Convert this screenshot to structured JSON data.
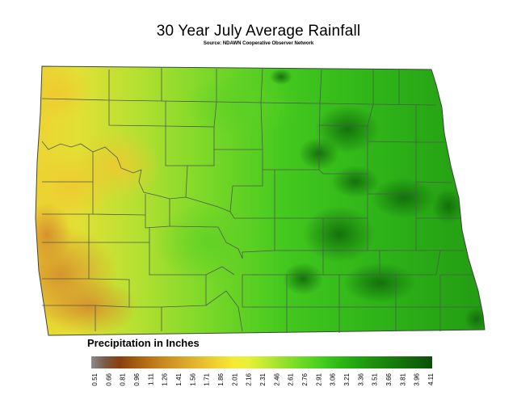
{
  "title": "30 Year July Average Rainfall",
  "source": "Source: NDAWN Cooperative Observer Network",
  "legend": {
    "title": "Precipitation in Inches",
    "values": [
      "0.51",
      "0.66",
      "0.81",
      "0.96",
      "1.11",
      "1.26",
      "1.41",
      "1.56",
      "1.71",
      "1.86",
      "2.01",
      "2.16",
      "2.31",
      "2.46",
      "2.61",
      "2.76",
      "2.91",
      "3.06",
      "3.21",
      "3.36",
      "3.51",
      "3.66",
      "3.81",
      "3.96",
      "4.11"
    ],
    "colors": [
      "#8a8a8a",
      "#7a5a40",
      "#8a4010",
      "#a05a10",
      "#b87018",
      "#c88820",
      "#d49a28",
      "#dfae2a",
      "#e8c22e",
      "#f0d632",
      "#f6ea34",
      "#e8f03a",
      "#c8ec34",
      "#a8e430",
      "#86de2a",
      "#66d824",
      "#4ad01e",
      "#34c018",
      "#28b012",
      "#20a010",
      "#1c8e0e",
      "#18800c",
      "#14700a",
      "#106008",
      "#0c4e06"
    ]
  },
  "map_colors": {
    "west": "#e8d236",
    "southwest": "#d8a030",
    "central": "#86d828",
    "east": "#30b818",
    "dark_east": "#167a0c",
    "county_line": "#505a50"
  }
}
